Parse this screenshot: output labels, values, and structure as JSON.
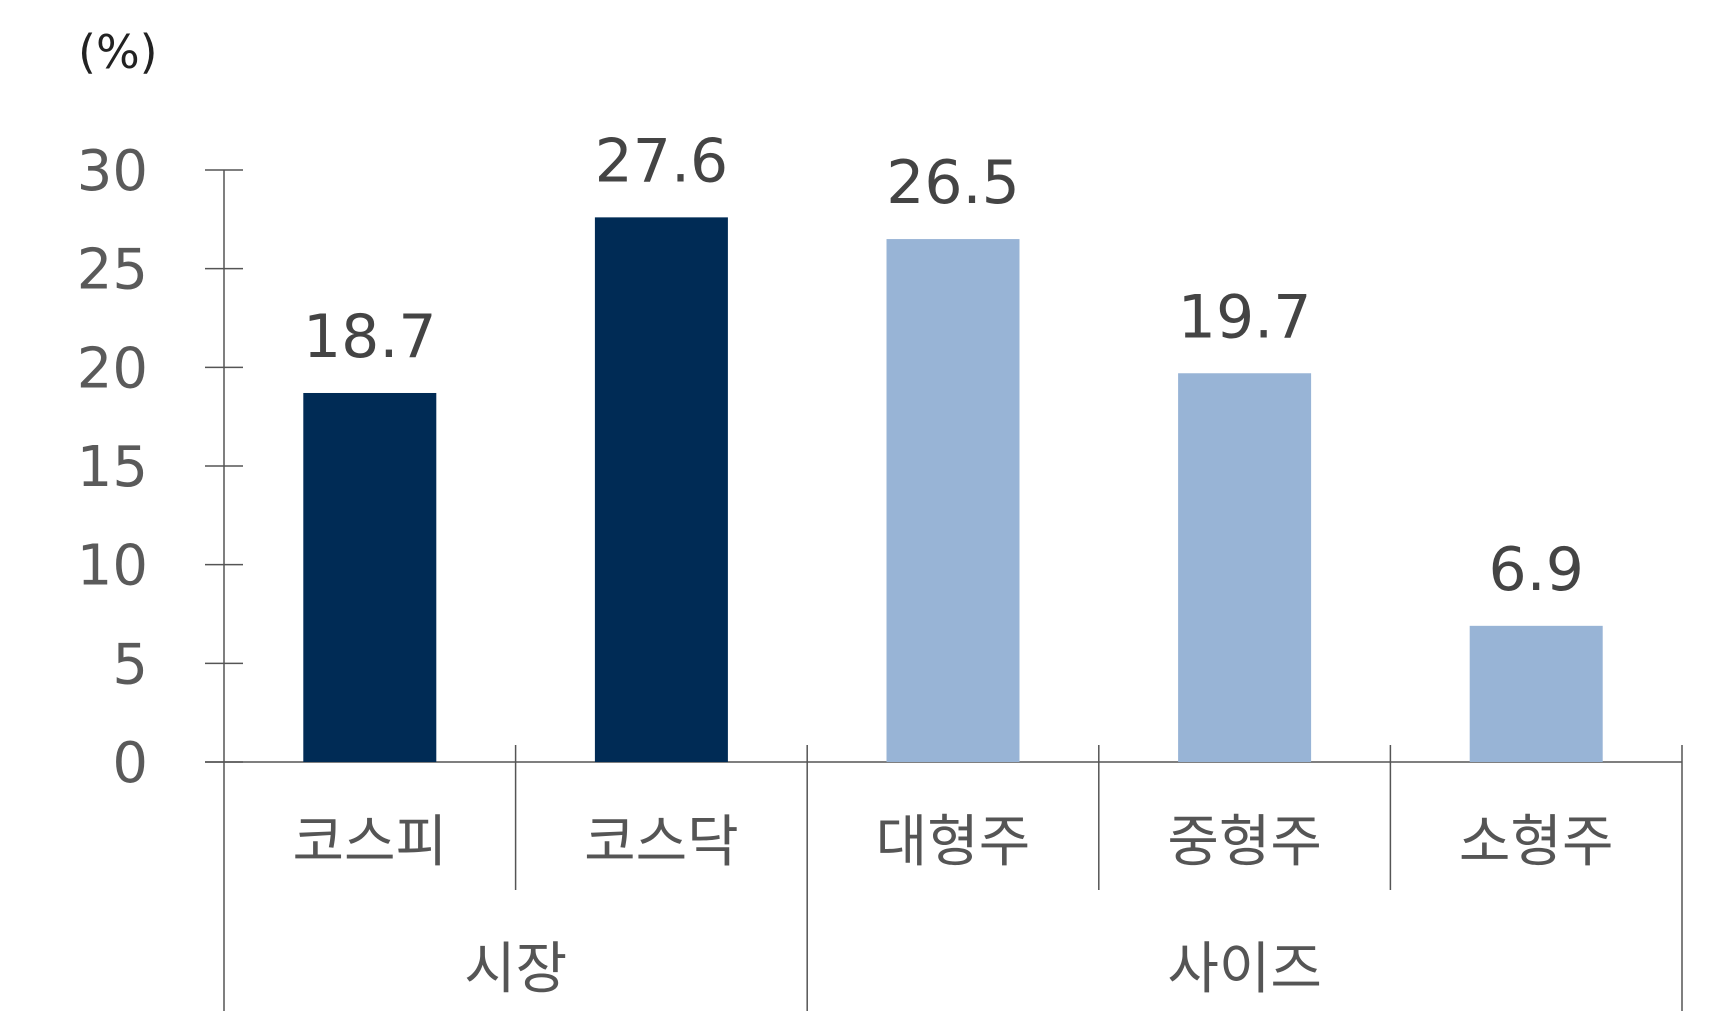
{
  "chart_data": {
    "type": "bar",
    "unit_label": "(%)",
    "ylim": [
      0,
      30
    ],
    "yticks": [
      0,
      5,
      10,
      15,
      20,
      25,
      30
    ],
    "categories": [
      "코스피",
      "코스닥",
      "대형주",
      "중형주",
      "소형주"
    ],
    "values": [
      18.7,
      27.6,
      26.5,
      19.7,
      6.9
    ],
    "value_labels": [
      "18.7",
      "27.6",
      "26.5",
      "19.7",
      "6.9"
    ],
    "groups": [
      {
        "label": "시장",
        "categories": [
          "코스피",
          "코스닥"
        ],
        "color": "#002b55"
      },
      {
        "label": "사이즈",
        "categories": [
          "대형주",
          "중형주",
          "소형주"
        ],
        "color": "#98b4d6"
      }
    ],
    "bar_colors": [
      "#002b55",
      "#002b55",
      "#98b4d6",
      "#98b4d6",
      "#98b4d6"
    ],
    "grid": false,
    "legend": "none"
  }
}
